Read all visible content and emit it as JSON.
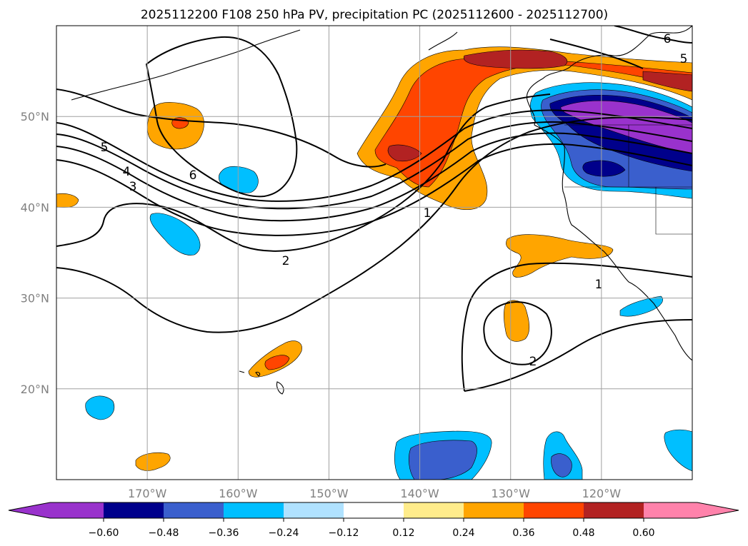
{
  "title": "2025112200 F108 250 hPa PV, precipitation PC (2025112600 - 2025112700)",
  "map": {
    "lon_range": [
      -180,
      -110
    ],
    "lat_range": [
      10,
      60
    ],
    "lon_ticks": [
      "170°W",
      "160°W",
      "150°W",
      "140°W",
      "130°W",
      "120°W"
    ],
    "lat_ticks": [
      "20°N",
      "30°N",
      "40°N",
      "50°N"
    ],
    "grid": true
  },
  "contours": {
    "labels": [
      "5",
      "4",
      "3",
      "6",
      "2",
      "1",
      "1",
      "2",
      "6",
      "5"
    ]
  },
  "colorbar": {
    "colors": [
      "#9932cc",
      "#00008b",
      "#3a5fcd",
      "#00bfff",
      "#b0e2ff",
      "#ffffff",
      "#ffec8b",
      "#ffa500",
      "#ff4500",
      "#b22222",
      "#ff82ab"
    ],
    "ticks": [
      "−0.60",
      "−0.48",
      "−0.36",
      "−0.24",
      "−0.12",
      "0.12",
      "0.24",
      "0.36",
      "0.48",
      "0.60"
    ],
    "extend": "both"
  }
}
